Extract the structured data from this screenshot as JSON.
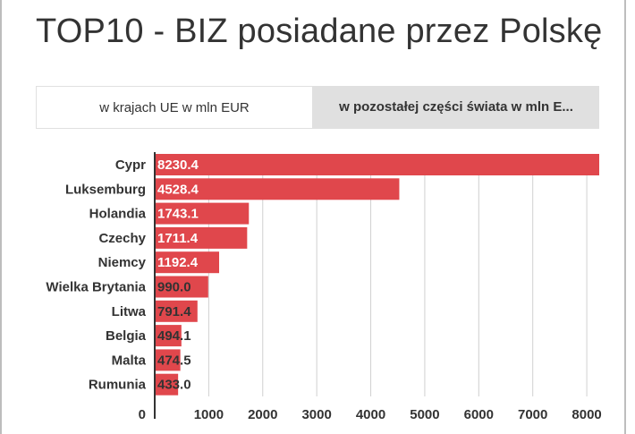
{
  "title": "TOP10 - BIZ posiadane przez Polskę",
  "tabs": [
    {
      "label": "w krajach UE w mln EUR",
      "active": true
    },
    {
      "label": "w pozostałej części świata w mln E...",
      "active": false
    }
  ],
  "colors": {
    "bar": "#e0474c",
    "grid": "#d0d0d0",
    "axis": "#333333"
  },
  "chart_data": {
    "type": "bar",
    "orientation": "horizontal",
    "categories": [
      "Cypr",
      "Luksemburg",
      "Holandia",
      "Czechy",
      "Niemcy",
      "Wielka Brytania",
      "Litwa",
      "Belgia",
      "Malta",
      "Rumunia"
    ],
    "values": [
      8230.4,
      4528.4,
      1743.1,
      1711.4,
      1192.4,
      990.0,
      791.4,
      494.1,
      474.5,
      433.0
    ],
    "value_labels": [
      "8230.4",
      "4528.4",
      "1743.1",
      "1711.4",
      "1192.4",
      "990.0",
      "791.4",
      "494.1",
      "474.5",
      "433.0"
    ],
    "x_ticks": [
      "0",
      "1000",
      "2000",
      "3000",
      "4000",
      "5000",
      "6000",
      "7000",
      "8000"
    ],
    "xlim": [
      0,
      8230.4
    ],
    "grid": true
  }
}
